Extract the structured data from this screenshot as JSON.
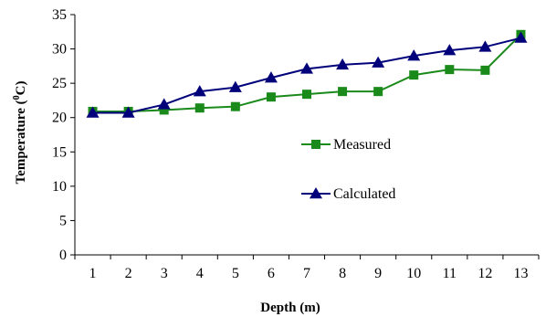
{
  "chart_data": {
    "type": "line",
    "title": "",
    "xlabel": "Depth (m)",
    "ylabel_main": "Temperature (",
    "ylabel_sup": "0",
    "ylabel_tail": "C)",
    "categories": [
      "1",
      "2",
      "3",
      "4",
      "5",
      "6",
      "7",
      "8",
      "9",
      "10",
      "11",
      "12",
      "13"
    ],
    "ylim": [
      0,
      35
    ],
    "yticks": [
      0,
      5,
      10,
      15,
      20,
      25,
      30,
      35
    ],
    "grid": false,
    "legend_position": "center-right",
    "series": [
      {
        "name": "Measured",
        "marker": "square",
        "color": "#1a8a1a",
        "markerColor": "#1a8a1a",
        "values": [
          20.9,
          20.9,
          21.1,
          21.4,
          21.6,
          23.0,
          23.4,
          23.8,
          23.8,
          26.2,
          27.0,
          26.9,
          32.1
        ]
      },
      {
        "name": "Calculated",
        "marker": "triangle",
        "color": "#00007a",
        "markerColor": "#00007a",
        "values": [
          20.7,
          20.7,
          21.9,
          23.8,
          24.4,
          25.8,
          27.1,
          27.7,
          28.0,
          29.0,
          29.8,
          30.3,
          31.6
        ]
      }
    ]
  }
}
